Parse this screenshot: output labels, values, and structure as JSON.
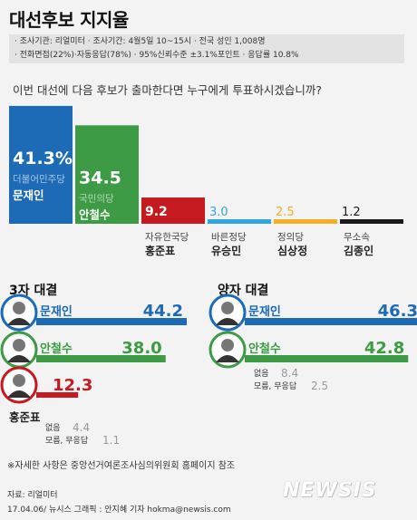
{
  "title": "대선후보 지지율",
  "meta": {
    "line1": "· 조사기관: 리얼미터  · 조사기간: 4월5일 10~15시  · 전국 성인 1,008명",
    "line2": "· 전화면접(22%)·자동응답(78%)  · 95%신뢰수준 ±3.1%포인트  · 응답률 10.8%"
  },
  "question": "이번 대선에 다음 후보가 출마한다면 누구에게 투표하시겠습니까?",
  "colors": {
    "blue": "#1d6bb7",
    "green": "#3e9b45",
    "red": "#c41a20",
    "sky": "#33a6de",
    "orange": "#f2b027",
    "black": "#1a1a1a",
    "grey": "#aaaaaa"
  },
  "chart_data": [
    {
      "type": "bar",
      "series": [
        {
          "party": "더불어민주당",
          "name": "문재인",
          "value": 41.3,
          "label": "41.3%",
          "color": "#1d6bb7"
        },
        {
          "party": "국민의당",
          "name": "안철수",
          "value": 34.5,
          "label": "34.5",
          "color": "#3e9b45"
        },
        {
          "party": "자유한국당",
          "name": "홍준표",
          "value": 9.2,
          "label": "9.2",
          "color": "#c41a20"
        },
        {
          "party": "바른정당",
          "name": "유승민",
          "value": 3.0,
          "label": "3.0",
          "color": "#33a6de"
        },
        {
          "party": "정의당",
          "name": "심상정",
          "value": 2.5,
          "label": "2.5",
          "color": "#f2b027"
        },
        {
          "party": "무소속",
          "name": "김종인",
          "value": 1.2,
          "label": "1.2",
          "color": "#1a1a1a"
        }
      ]
    },
    {
      "type": "bar",
      "title": "3자 대결",
      "bars": [
        {
          "name": "문재인",
          "value": 44.2,
          "label": "44.2",
          "color": "#1d6bb7"
        },
        {
          "name": "안철수",
          "value": 38.0,
          "label": "38.0",
          "color": "#3e9b45"
        },
        {
          "name": "홍준표",
          "value": 12.3,
          "label": "12.3",
          "color": "#c41a20"
        }
      ],
      "other": {
        "label1": "없음",
        "label2": "모름, 무응답",
        "value1": "4.4",
        "value2": "1.1"
      }
    },
    {
      "type": "bar",
      "title": "양자 대결",
      "bars": [
        {
          "name": "문재인",
          "value": 46.3,
          "label": "46.3",
          "color": "#1d6bb7"
        },
        {
          "name": "안철수",
          "value": 42.8,
          "label": "42.8",
          "color": "#3e9b45"
        }
      ],
      "other": {
        "label1": "없음",
        "label2": "모름, 무응답",
        "value1": "8.4",
        "value2": "2.5"
      }
    }
  ],
  "footnote": "※자세한 사항은 중앙선거여론조사심의위원회 홈페이지 참조",
  "source": "자료: 리얼미터",
  "credit": "17.04.06/ 뉴시스 그래픽 : 안지혜 기자  hokma@newsis.com",
  "logo": "NEWSIS"
}
